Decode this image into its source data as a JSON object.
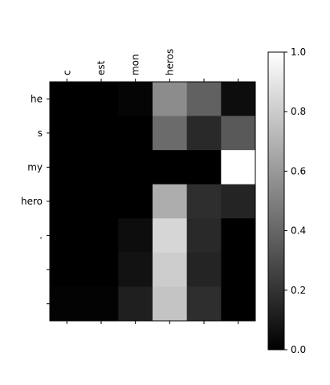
{
  "chart_data": {
    "type": "heatmap",
    "colormap": "gray",
    "x_tick_labels": [
      "c",
      "est",
      "mon",
      "heros",
      "",
      ""
    ],
    "y_tick_labels": [
      "he",
      "s",
      "my",
      "hero",
      ".",
      "",
      ""
    ],
    "values": [
      [
        0.0,
        0.0,
        0.02,
        0.55,
        0.38,
        0.05
      ],
      [
        0.0,
        0.0,
        0.0,
        0.42,
        0.16,
        0.35
      ],
      [
        0.0,
        0.0,
        0.0,
        0.0,
        0.0,
        1.0
      ],
      [
        0.0,
        0.0,
        0.0,
        0.68,
        0.18,
        0.14
      ],
      [
        0.0,
        0.0,
        0.05,
        0.84,
        0.16,
        0.0
      ],
      [
        0.0,
        0.0,
        0.07,
        0.8,
        0.14,
        0.0
      ],
      [
        0.01,
        0.01,
        0.12,
        0.77,
        0.18,
        0.0
      ]
    ],
    "colorbar": {
      "range": [
        0.0,
        1.0
      ],
      "ticks": [
        0.0,
        0.2,
        0.4,
        0.6,
        0.8,
        1.0
      ],
      "tick_labels": [
        "0.0",
        "0.2",
        "0.4",
        "0.6",
        "0.8",
        "1.0"
      ]
    }
  }
}
